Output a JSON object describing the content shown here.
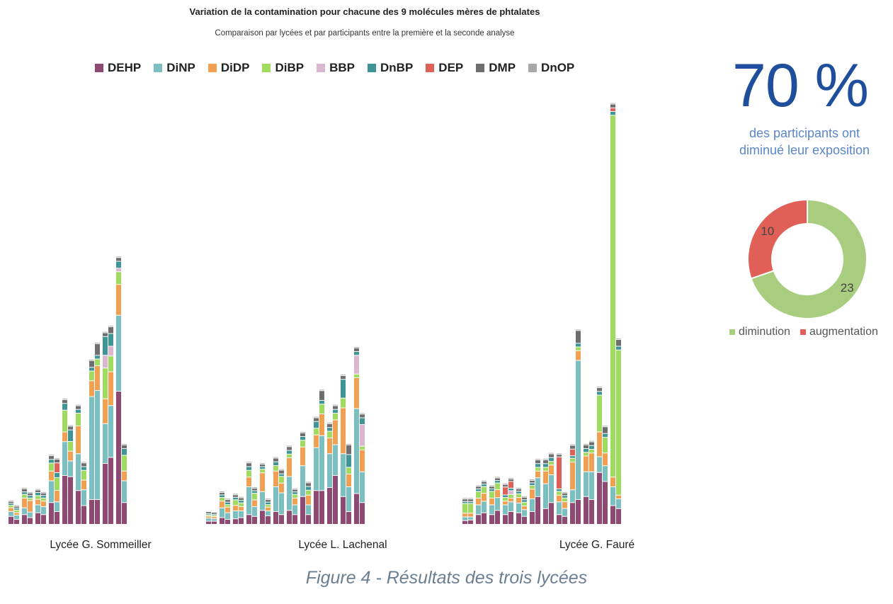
{
  "chart_data": [
    {
      "type": "bar",
      "stacked": true,
      "title": "Variation de la contamination pour chacune des 9 molécules mères de phtalates",
      "subtitle": "Comparaison par lycées et par participants entre la première et la seconde analyse",
      "legend_position": "top",
      "grid": false,
      "series": [
        {
          "name": "DEHP",
          "color": "#8e4a72"
        },
        {
          "name": "DiNP",
          "color": "#7cbfc0"
        },
        {
          "name": "DiDP",
          "color": "#f0a050"
        },
        {
          "name": "DiBP",
          "color": "#9edb5e"
        },
        {
          "name": "BBP",
          "color": "#dbb6cf"
        },
        {
          "name": "DnBP",
          "color": "#3e9596"
        },
        {
          "name": "DEP",
          "color": "#e06058"
        },
        {
          "name": "DMP",
          "color": "#6e6e6e"
        },
        {
          "name": "DnOP",
          "color": "#a8a8a8"
        }
      ],
      "groups": [
        {
          "label": "Lycée G. Sommeiller",
          "participants": [
            {
              "first": [
                12,
                7,
                5,
                3,
                0,
                2,
                0,
                2,
                1
              ],
              "second": [
                7,
                6,
                3,
                3,
                0,
                2,
                0,
                2,
                1
              ]
            },
            {
              "first": [
                15,
                10,
                15,
                5,
                0,
                3,
                0,
                4,
                1
              ],
              "second": [
                10,
                8,
                18,
                3,
                0,
                3,
                0,
                3,
                1
              ]
            },
            {
              "first": [
                18,
                12,
                8,
                5,
                0,
                4,
                0,
                3,
                1
              ],
              "second": [
                15,
                12,
                8,
                4,
                0,
                3,
                0,
                3,
                1
              ]
            },
            {
              "first": [
                35,
                35,
                15,
                12,
                0,
                5,
                0,
                5,
                1
              ],
              "second": [
                20,
                15,
                18,
                20,
                0,
                7,
                15,
                5,
                1
              ]
            },
            {
              "first": [
                80,
                55,
                15,
                35,
                0,
                10,
                0,
                5,
                1
              ],
              "second": [
                78,
                25,
                15,
                15,
                0,
                18,
                0,
                5,
                1
              ]
            },
            {
              "first": [
                55,
                60,
                45,
                20,
                0,
                5,
                0,
                5,
                1
              ],
              "second": [
                30,
                25,
                15,
                15,
                0,
                5,
                0,
                5,
                1
              ]
            },
            {
              "first": [
                40,
                170,
                25,
                15,
                0,
                5,
                0,
                10,
                1
              ],
              "second": [
                40,
                180,
                40,
                10,
                0,
                5,
                0,
                18,
                1
              ]
            },
            {
              "first": [
                100,
                65,
                40,
                50,
                20,
                30,
                0,
                5,
                1
              ],
              "second": [
                110,
                85,
                55,
                25,
                15,
                20,
                0,
                10,
                1
              ]
            },
            {
              "first": [
                220,
                125,
                50,
                20,
                5,
                10,
                0,
                5,
                1
              ],
              "second": [
                35,
                35,
                15,
                25,
                0,
                10,
                0,
                5,
                1
              ]
            }
          ]
        },
        {
          "label": "Lycée L. Lachenal",
          "participants": [
            {
              "first": [
                4,
                4,
                2,
                1,
                0,
                1,
                0,
                2,
                0
              ],
              "second": [
                4,
                3,
                2,
                1,
                0,
                1,
                0,
                2,
                0
              ]
            },
            {
              "first": [
                10,
                15,
                10,
                5,
                0,
                3,
                0,
                3,
                1
              ],
              "second": [
                7,
                10,
                8,
                3,
                0,
                3,
                0,
                3,
                1
              ]
            },
            {
              "first": [
                8,
                12,
                8,
                8,
                0,
                3,
                0,
                3,
                1
              ],
              "second": [
                10,
                10,
                6,
                5,
                0,
                3,
                0,
                3,
                1
              ]
            },
            {
              "first": [
                15,
                45,
                15,
                10,
                0,
                5,
                0,
                5,
                1
              ],
              "second": [
                12,
                15,
                10,
                10,
                0,
                3,
                0,
                3,
                1
              ]
            },
            {
              "first": [
                22,
                30,
                30,
                5,
                0,
                3,
                0,
                3,
                1
              ],
              "second": [
                13,
                7,
                5,
                3,
                0,
                3,
                0,
                3,
                1
              ]
            },
            {
              "first": [
                20,
                40,
                25,
                8,
                0,
                5,
                0,
                5,
                1
              ],
              "second": [
                15,
                35,
                15,
                10,
                0,
                3,
                0,
                5,
                1
              ]
            },
            {
              "first": [
                22,
                55,
                30,
                5,
                0,
                5,
                0,
                5,
                1
              ],
              "second": [
                15,
                15,
                10,
                5,
                0,
                3,
                0,
                3,
                1
              ]
            },
            {
              "first": [
                45,
                50,
                30,
                10,
                0,
                5,
                0,
                5,
                1
              ],
              "second": [
                15,
                15,
                15,
                7,
                0,
                5,
                0,
                5,
                1
              ]
            },
            {
              "first": [
                55,
                70,
                20,
                10,
                0,
                10,
                0,
                5,
                1
              ],
              "second": [
                55,
                90,
                35,
                15,
                0,
                5,
                0,
                15,
                1
              ]
            },
            {
              "first": [
                60,
                55,
                25,
                10,
                0,
                5,
                0,
                5,
                1
              ],
              "second": [
                80,
                50,
                40,
                10,
                0,
                5,
                0,
                5,
                1
              ]
            },
            {
              "first": [
                45,
                70,
                75,
                15,
                0,
                30,
                0,
                5,
                1
              ],
              "second": [
                20,
                40,
                20,
                10,
                0,
                20,
                0,
                15,
                1
              ]
            },
            {
              "first": [
                50,
                140,
                50,
                5,
                30,
                5,
                0,
                5,
                1
              ],
              "second": [
                35,
                50,
                35,
                5,
                35,
                10,
                0,
                5,
                1
              ]
            }
          ]
        },
        {
          "label": "Lycée G. Fauré",
          "participants": [
            {
              "first": [
                5,
                5,
                5,
                15,
                0,
                2,
                0,
                3,
                1
              ],
              "second": [
                6,
                4,
                5,
                15,
                0,
                2,
                0,
                3,
                1
              ]
            },
            {
              "first": [
                15,
                15,
                10,
                10,
                0,
                3,
                0,
                3,
                1
              ],
              "second": [
                18,
                18,
                12,
                10,
                0,
                3,
                0,
                3,
                1
              ]
            },
            {
              "first": [
                15,
                15,
                10,
                10,
                0,
                3,
                0,
                3,
                1
              ],
              "second": [
                22,
                20,
                12,
                10,
                0,
                3,
                0,
                3,
                1
              ]
            },
            {
              "first": [
                15,
                15,
                5,
                5,
                0,
                3,
                12,
                3,
                1
              ],
              "second": [
                20,
                15,
                5,
                5,
                5,
                3,
                10,
                3,
                1
              ]
            },
            {
              "first": [
                18,
                15,
                8,
                5,
                0,
                3,
                0,
                3,
                1
              ],
              "second": [
                12,
                10,
                5,
                5,
                0,
                3,
                0,
                3,
                1
              ]
            },
            {
              "first": [
                20,
                20,
                15,
                5,
                0,
                3,
                0,
                3,
                1
              ],
              "second": [
                45,
                30,
                10,
                5,
                0,
                5,
                0,
                5,
                1
              ]
            },
            {
              "first": [
                25,
                40,
                20,
                5,
                0,
                5,
                0,
                5,
                1
              ],
              "second": [
                35,
                45,
                15,
                5,
                0,
                5,
                0,
                5,
                1
              ]
            },
            {
              "first": [
                15,
                20,
                10,
                5,
                0,
                3,
                52,
                3,
                1
              ],
              "second": [
                12,
                12,
                10,
                5,
                0,
                3,
                0,
                3,
                1
              ]
            },
            {
              "first": [
                35,
                20,
                45,
                5,
                0,
                3,
                10,
                5,
                1
              ],
              "second": [
                40,
                230,
                15,
                5,
                0,
                5,
                0,
                20,
                1
              ]
            },
            {
              "first": [
                45,
                40,
                25,
                5,
                0,
                5,
                0,
                5,
                1
              ],
              "second": [
                40,
                45,
                30,
                5,
                0,
                5,
                0,
                5,
                1
              ]
            },
            {
              "first": [
                85,
                25,
                40,
                60,
                0,
                5,
                0,
                5,
                1
              ],
              "second": [
                70,
                25,
                20,
                25,
                0,
                5,
                0,
                10,
                1
              ]
            },
            {
              "first": [
                30,
                30,
                15,
                600,
                0,
                5,
                5,
                5,
                1
              ],
              "second": [
                25,
                15,
                5,
                240,
                0,
                5,
                0,
                10,
                1
              ]
            }
          ]
        }
      ]
    },
    {
      "type": "pie",
      "donut": true,
      "categories": [
        "diminution",
        "augmentation"
      ],
      "values": [
        23,
        10
      ],
      "colors": [
        "#a9cd7f",
        "#e06058"
      ],
      "legend_position": "bottom"
    }
  ],
  "stats": {
    "percent": "70 %",
    "line1": "des participants ont",
    "line2": "diminué leur exposition"
  },
  "caption": "Figure 4 - Résultats des trois lycées"
}
